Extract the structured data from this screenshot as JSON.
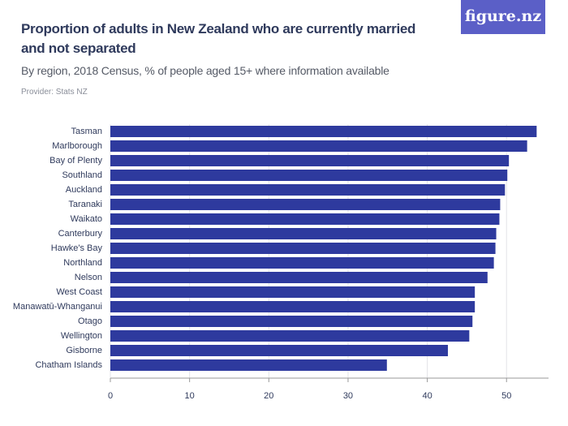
{
  "chart_data": {
    "type": "bar",
    "orientation": "horizontal",
    "title": "Proportion of adults in New Zealand who are currently married and not separated",
    "subtitle": "By region, 2018 Census, % of people aged 15+ where information available",
    "source": "Provider: Stats NZ",
    "logo": "figure.nz",
    "categories": [
      "Tasman",
      "Marlborough",
      "Bay of Plenty",
      "Southland",
      "Auckland",
      "Taranaki",
      "Waikato",
      "Canterbury",
      "Hawke's Bay",
      "Northland",
      "Nelson",
      "West Coast",
      "Manawatū-Whanganui",
      "Otago",
      "Wellington",
      "Gisborne",
      "Chatham Islands"
    ],
    "values": [
      53.8,
      52.6,
      50.3,
      50.1,
      49.8,
      49.2,
      49.1,
      48.7,
      48.6,
      48.4,
      47.6,
      46.0,
      46.0,
      45.7,
      45.3,
      42.6,
      34.9
    ],
    "color": "#2e3a9e",
    "xlim": [
      0,
      55.3
    ],
    "xticks": [
      0,
      10,
      20,
      30,
      40,
      50
    ],
    "grid": true
  }
}
